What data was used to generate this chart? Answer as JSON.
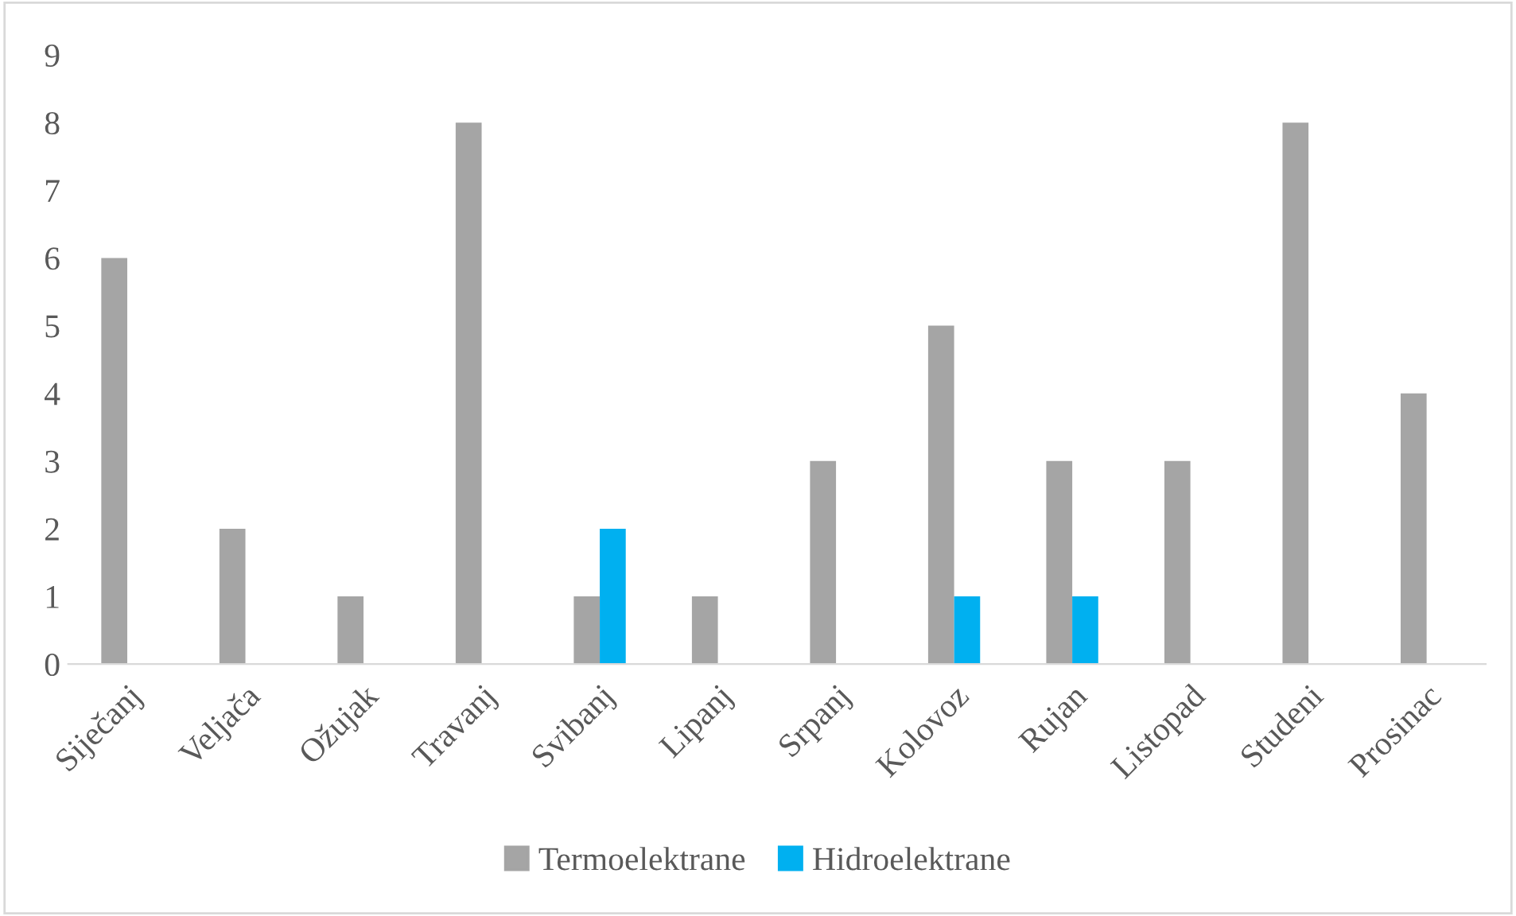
{
  "chart_data": {
    "type": "bar",
    "categories": [
      "Siječanj",
      "Veljača",
      "Ožujak",
      "Travanj",
      "Svibanj",
      "Lipanj",
      "Srpanj",
      "Kolovoz",
      "Rujan",
      "Listopad",
      "Studeni",
      "Prosinac"
    ],
    "series": [
      {
        "name": "Termoelektrane",
        "color": "#a5a5a5",
        "values": [
          6,
          2,
          1,
          8,
          1,
          1,
          3,
          5,
          3,
          3,
          8,
          4
        ]
      },
      {
        "name": "Hidroelektrane",
        "color": "#00b0f0",
        "values": [
          0,
          0,
          0,
          0,
          2,
          0,
          0,
          1,
          1,
          0,
          0,
          0
        ]
      }
    ],
    "ylim": [
      0,
      9
    ],
    "yticks": [
      0,
      1,
      2,
      3,
      4,
      5,
      6,
      7,
      8,
      9
    ],
    "grid": false,
    "legend": "bottom"
  }
}
